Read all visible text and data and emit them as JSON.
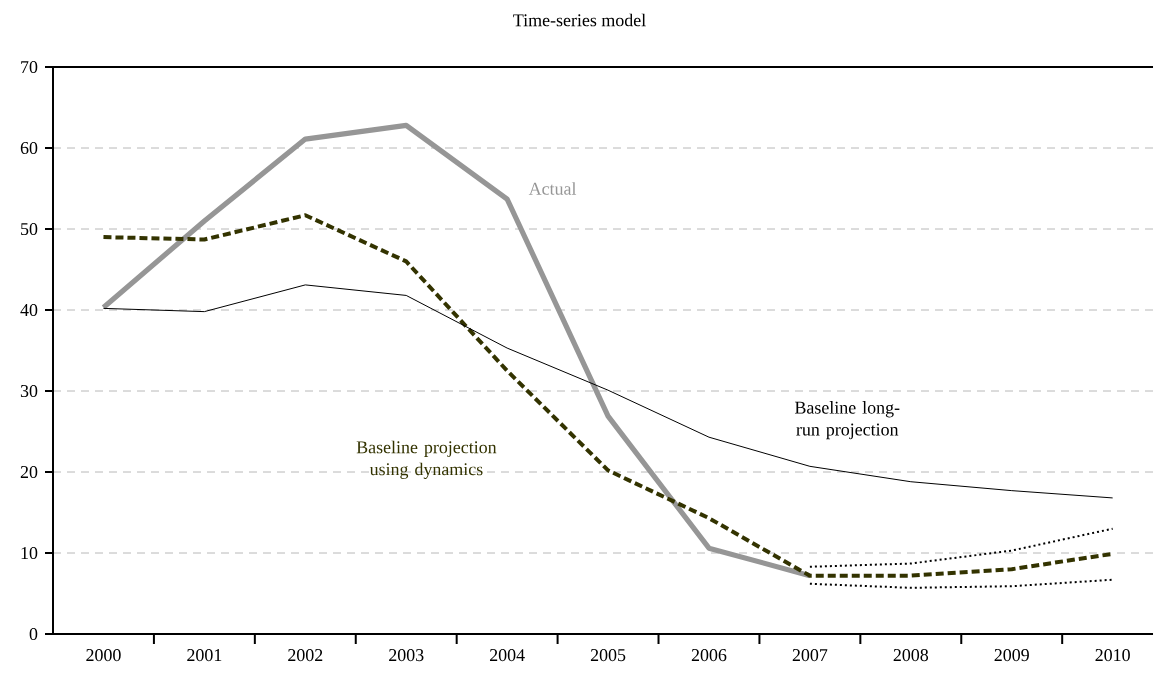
{
  "chart_data": {
    "type": "line",
    "title": "Time-series model",
    "categories": [
      "2000",
      "2001",
      "2002",
      "2003",
      "2004",
      "2005",
      "2006",
      "2007",
      "2008",
      "2009",
      "2010"
    ],
    "series": [
      {
        "name": "Actual",
        "color": "#969696",
        "line_style": "solid",
        "values": [
          40.3,
          51,
          61.1,
          62.8,
          53.7,
          26.9,
          10.6,
          7.2,
          null,
          null,
          null
        ]
      },
      {
        "name": "Baseline projection using dynamics",
        "color": "#333300",
        "line_style": "dashed",
        "values": [
          49,
          48.7,
          51.7,
          46,
          32.5,
          20.2,
          14.3,
          7.2,
          7.2,
          8,
          9.9
        ]
      },
      {
        "name": "Baseline long-run projection",
        "color": "#000000",
        "line_style": "solid",
        "values": [
          40.2,
          39.8,
          43.1,
          41.8,
          35.3,
          30.1,
          24.3,
          20.7,
          18.8,
          17.7,
          16.8
        ]
      },
      {
        "color": "#000000",
        "line_style": "dotted",
        "values": [
          null,
          null,
          null,
          null,
          null,
          null,
          null,
          8.3,
          8.7,
          10.3,
          13
        ]
      },
      {
        "color": "#000000",
        "line_style": "dotted",
        "values": [
          null,
          null,
          null,
          null,
          null,
          null,
          null,
          6.2,
          5.7,
          5.9,
          6.7
        ]
      }
    ],
    "ylim": [
      0,
      70
    ],
    "yticks": [
      0,
      10,
      20,
      30,
      40,
      50,
      60,
      70
    ],
    "grid": "y"
  }
}
